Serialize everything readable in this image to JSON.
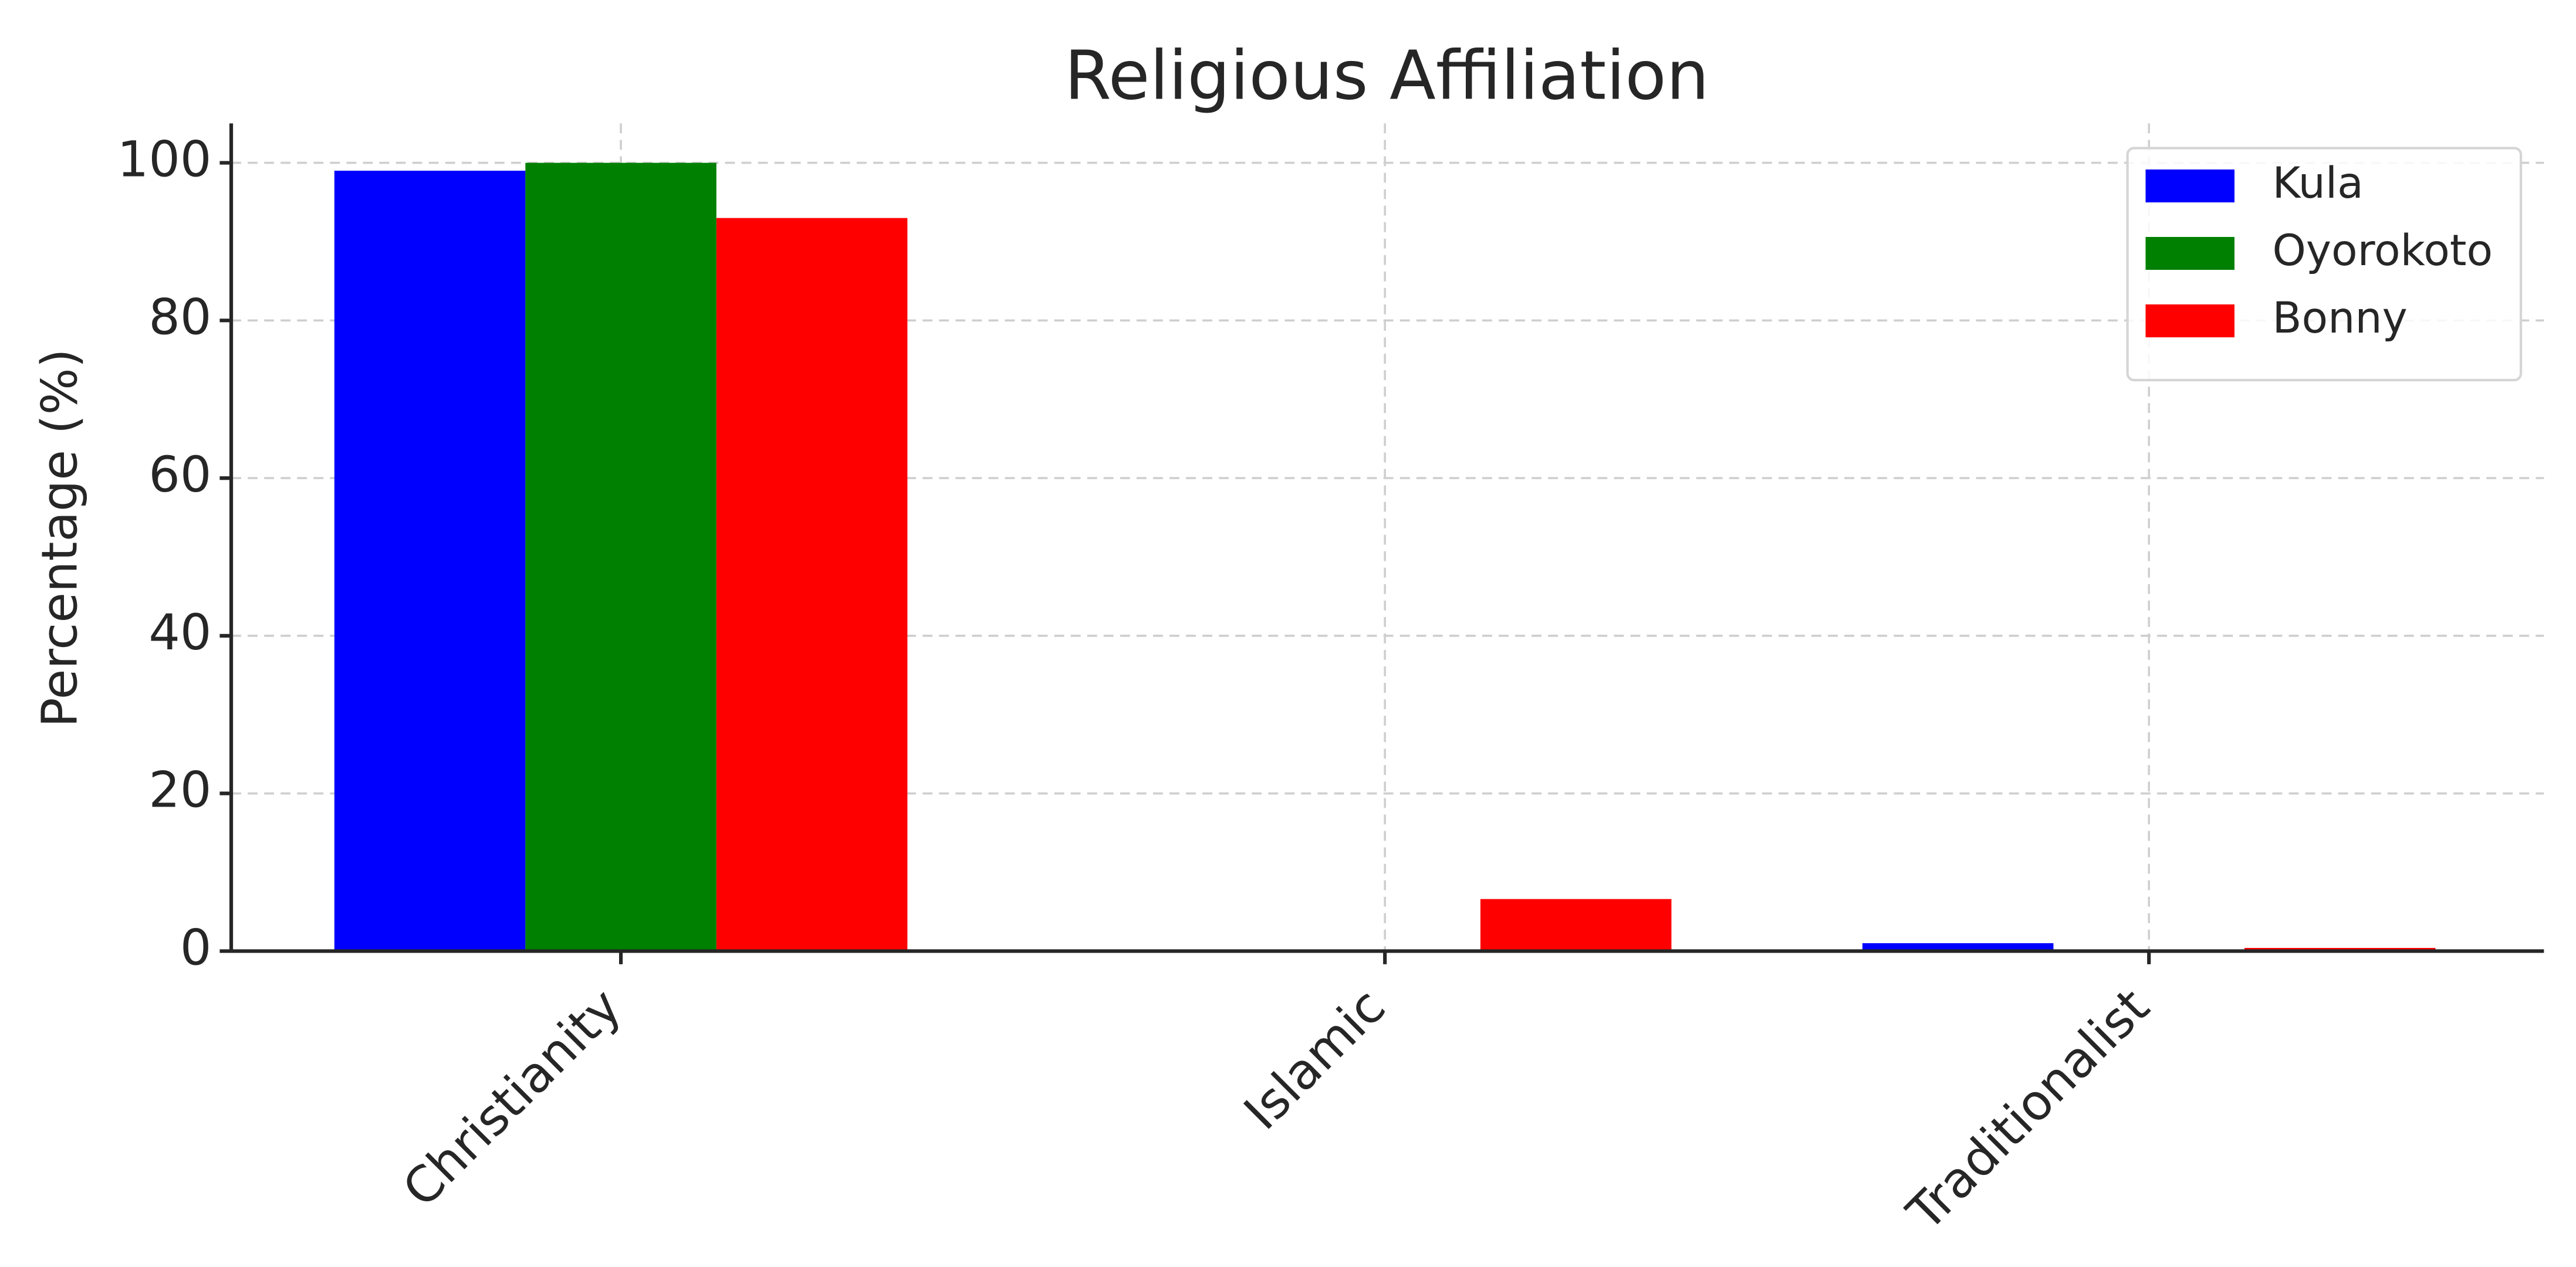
{
  "chart_data": {
    "type": "bar",
    "title": "Religious Affiliation",
    "y_label": "Percentage (%)",
    "categories": [
      "Christianity",
      "Islamic",
      "Traditionalist"
    ],
    "series": [
      {
        "name": "Kula",
        "color": "#0000ff",
        "values": [
          99,
          0,
          1
        ]
      },
      {
        "name": "Oyorokoto",
        "color": "#008000",
        "values": [
          100,
          0,
          0
        ]
      },
      {
        "name": "Bonny",
        "color": "#ff0000",
        "values": [
          93,
          6.6,
          0.4
        ]
      }
    ],
    "ylim": [
      0,
      105
    ],
    "yticks": [
      0,
      20,
      40,
      60,
      80,
      100
    ],
    "grid": true,
    "legend": "upper right"
  }
}
